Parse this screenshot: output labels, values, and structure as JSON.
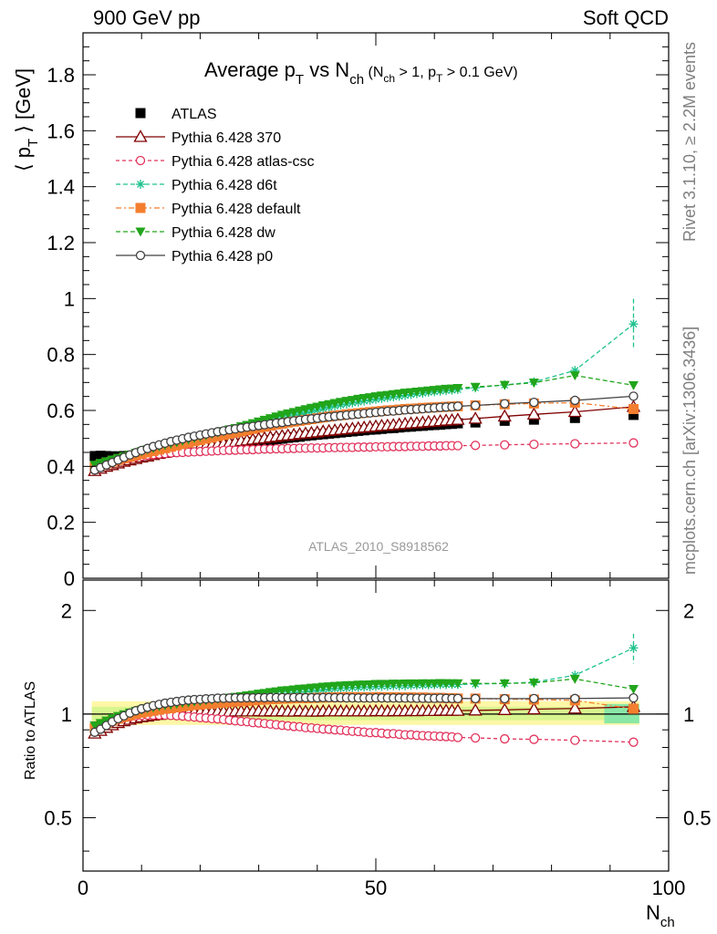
{
  "header": {
    "left": "900 GeV pp",
    "right": "Soft QCD"
  },
  "side_text": {
    "rivet": "Rivet 3.1.10, ≥ 2.2M events",
    "mcplots": "mcplots.cern.ch [arXiv:1306.3436]"
  },
  "analysis_id": "ATLAS_2010_S8918562",
  "title": {
    "main": "Average p",
    "main_sub": "T",
    "vs": " vs N",
    "vs_sub": "ch",
    "cond1": " (N",
    "cond1_sub": "ch",
    "cond2": " > 1, p",
    "cond2_sub": "T",
    "cond3": " > 0.1 GeV)"
  },
  "ylabel": {
    "open": "⟨ p",
    "sub": "T",
    "close": " ⟩  [GeV]"
  },
  "ratio_ylabel": "Ratio to ATLAS",
  "xlabel": {
    "main": "N",
    "sub": "ch"
  },
  "chart_data": {
    "type": "line",
    "x": [
      2,
      3,
      4,
      5,
      6,
      7,
      8,
      9,
      10,
      11,
      12,
      13,
      14,
      15,
      16,
      17,
      18,
      19,
      20,
      21,
      22,
      23,
      24,
      25,
      26,
      27,
      28,
      29,
      30,
      31,
      32,
      33,
      34,
      35,
      36,
      37,
      38,
      39,
      40,
      41,
      42,
      43,
      44,
      45,
      46,
      47,
      48,
      49,
      50,
      51,
      52,
      53,
      54,
      55,
      56,
      57,
      58,
      59,
      60,
      61,
      62,
      63,
      64,
      67,
      72,
      77,
      84,
      94
    ],
    "xlim": [
      0,
      100
    ],
    "ylim": [
      0,
      1.95
    ],
    "ratio_ylim": [
      0.35,
      2.45
    ],
    "ratio_log": true,
    "xticks": [
      0,
      50,
      100
    ],
    "yticks": [
      0,
      0.2,
      0.4,
      0.6,
      0.8,
      1,
      1.2,
      1.4,
      1.6,
      1.8
    ],
    "ratio_ticks": [
      0.5,
      1,
      2
    ],
    "legend_position": "top-left",
    "series": [
      {
        "name": "ATLAS",
        "color": "#000000",
        "marker": "square-filled",
        "dash": "none",
        "values": [
          0.437,
          0.438,
          0.437,
          0.436,
          0.436,
          0.437,
          0.438,
          0.439,
          0.441,
          0.443,
          0.445,
          0.447,
          0.449,
          0.452,
          0.454,
          0.456,
          0.459,
          0.461,
          0.464,
          0.466,
          0.469,
          0.471,
          0.474,
          0.477,
          0.479,
          0.482,
          0.484,
          0.487,
          0.489,
          0.492,
          0.494,
          0.497,
          0.499,
          0.502,
          0.504,
          0.506,
          0.509,
          0.511,
          0.513,
          0.515,
          0.517,
          0.519,
          0.521,
          0.523,
          0.525,
          0.527,
          0.529,
          0.531,
          0.532,
          0.534,
          0.536,
          0.537,
          0.539,
          0.541,
          0.542,
          0.544,
          0.545,
          0.547,
          0.548,
          0.549,
          0.551,
          0.552,
          0.554,
          0.557,
          0.563,
          0.567,
          0.573,
          0.584
        ]
      },
      {
        "name": "Pythia 6.428 370",
        "color": "#800000",
        "marker": "triangle-open",
        "dash": "none",
        "values": [
          0.384,
          0.392,
          0.399,
          0.405,
          0.411,
          0.417,
          0.422,
          0.427,
          0.432,
          0.436,
          0.441,
          0.445,
          0.449,
          0.453,
          0.456,
          0.46,
          0.463,
          0.467,
          0.47,
          0.473,
          0.476,
          0.479,
          0.482,
          0.485,
          0.488,
          0.491,
          0.493,
          0.496,
          0.499,
          0.501,
          0.504,
          0.506,
          0.509,
          0.511,
          0.513,
          0.516,
          0.518,
          0.52,
          0.522,
          0.525,
          0.527,
          0.529,
          0.531,
          0.533,
          0.535,
          0.537,
          0.539,
          0.541,
          0.543,
          0.545,
          0.546,
          0.548,
          0.55,
          0.552,
          0.554,
          0.555,
          0.557,
          0.559,
          0.56,
          0.562,
          0.564,
          0.565,
          0.567,
          0.571,
          0.579,
          0.586,
          0.595,
          0.613
        ]
      },
      {
        "name": "Pythia 6.428 atlas-csc",
        "color": "#e2335c",
        "marker": "circle-open",
        "dash": "4,3",
        "values": [
          0.395,
          0.403,
          0.41,
          0.416,
          0.421,
          0.426,
          0.43,
          0.434,
          0.437,
          0.44,
          0.442,
          0.444,
          0.446,
          0.448,
          0.449,
          0.45,
          0.451,
          0.452,
          0.453,
          0.454,
          0.455,
          0.456,
          0.457,
          0.458,
          0.458,
          0.459,
          0.46,
          0.46,
          0.461,
          0.462,
          0.462,
          0.463,
          0.463,
          0.464,
          0.464,
          0.465,
          0.465,
          0.466,
          0.466,
          0.466,
          0.467,
          0.467,
          0.468,
          0.468,
          0.468,
          0.469,
          0.469,
          0.469,
          0.47,
          0.47,
          0.47,
          0.471,
          0.471,
          0.471,
          0.472,
          0.472,
          0.472,
          0.473,
          0.473,
          0.473,
          0.474,
          0.474,
          0.474,
          0.475,
          0.477,
          0.479,
          0.481,
          0.484
        ]
      },
      {
        "name": "Pythia 6.428 d6t",
        "color": "#1fc28e",
        "marker": "star",
        "dash": "5,3",
        "values": [
          0.404,
          0.411,
          0.417,
          0.423,
          0.428,
          0.433,
          0.439,
          0.444,
          0.449,
          0.455,
          0.46,
          0.466,
          0.471,
          0.476,
          0.481,
          0.486,
          0.491,
          0.496,
          0.501,
          0.506,
          0.511,
          0.516,
          0.521,
          0.526,
          0.531,
          0.536,
          0.541,
          0.546,
          0.551,
          0.556,
          0.561,
          0.566,
          0.571,
          0.576,
          0.581,
          0.586,
          0.591,
          0.596,
          0.601,
          0.606,
          0.611,
          0.616,
          0.62,
          0.623,
          0.627,
          0.63,
          0.634,
          0.637,
          0.64,
          0.643,
          0.646,
          0.649,
          0.651,
          0.654,
          0.657,
          0.66,
          0.662,
          0.665,
          0.667,
          0.669,
          0.671,
          0.673,
          0.675,
          0.681,
          0.691,
          0.702,
          0.743,
          0.909
        ]
      },
      {
        "name": "Pythia 6.428 default",
        "color": "#f47e2f",
        "marker": "square-filled",
        "dash": "6,3,2,3",
        "values": [
          0.398,
          0.405,
          0.411,
          0.417,
          0.423,
          0.429,
          0.434,
          0.44,
          0.445,
          0.45,
          0.455,
          0.46,
          0.465,
          0.47,
          0.475,
          0.48,
          0.485,
          0.49,
          0.494,
          0.499,
          0.503,
          0.508,
          0.512,
          0.517,
          0.521,
          0.525,
          0.529,
          0.534,
          0.538,
          0.542,
          0.546,
          0.55,
          0.553,
          0.557,
          0.56,
          0.563,
          0.566,
          0.569,
          0.572,
          0.575,
          0.578,
          0.581,
          0.583,
          0.586,
          0.588,
          0.59,
          0.592,
          0.594,
          0.596,
          0.598,
          0.6,
          0.601,
          0.603,
          0.605,
          0.606,
          0.607,
          0.609,
          0.61,
          0.611,
          0.612,
          0.613,
          0.614,
          0.615,
          0.618,
          0.622,
          0.625,
          0.628,
          0.605
        ]
      },
      {
        "name": "Pythia 6.428 dw",
        "color": "#21a51b",
        "marker": "triangle-down-filled",
        "dash": "5,3",
        "values": [
          0.405,
          0.412,
          0.418,
          0.424,
          0.43,
          0.436,
          0.442,
          0.448,
          0.454,
          0.46,
          0.465,
          0.471,
          0.476,
          0.481,
          0.486,
          0.491,
          0.496,
          0.501,
          0.506,
          0.511,
          0.516,
          0.521,
          0.526,
          0.532,
          0.537,
          0.543,
          0.548,
          0.554,
          0.56,
          0.566,
          0.572,
          0.578,
          0.584,
          0.589,
          0.594,
          0.599,
          0.604,
          0.609,
          0.613,
          0.618,
          0.622,
          0.626,
          0.63,
          0.634,
          0.637,
          0.641,
          0.644,
          0.647,
          0.65,
          0.653,
          0.655,
          0.658,
          0.66,
          0.663,
          0.665,
          0.667,
          0.669,
          0.671,
          0.673,
          0.675,
          0.677,
          0.678,
          0.68,
          0.684,
          0.691,
          0.699,
          0.725,
          0.69
        ]
      },
      {
        "name": "Pythia 6.428 p0",
        "color": "#404040",
        "marker": "circle-open",
        "dash": "none",
        "values": [
          0.387,
          0.396,
          0.405,
          0.414,
          0.423,
          0.432,
          0.441,
          0.449,
          0.457,
          0.464,
          0.471,
          0.477,
          0.483,
          0.489,
          0.494,
          0.499,
          0.504,
          0.508,
          0.512,
          0.516,
          0.52,
          0.524,
          0.527,
          0.531,
          0.534,
          0.537,
          0.54,
          0.543,
          0.546,
          0.549,
          0.552,
          0.555,
          0.557,
          0.56,
          0.563,
          0.565,
          0.568,
          0.57,
          0.572,
          0.575,
          0.577,
          0.579,
          0.581,
          0.583,
          0.585,
          0.587,
          0.589,
          0.591,
          0.593,
          0.595,
          0.597,
          0.598,
          0.6,
          0.602,
          0.603,
          0.605,
          0.606,
          0.608,
          0.609,
          0.611,
          0.612,
          0.613,
          0.615,
          0.618,
          0.624,
          0.629,
          0.636,
          0.651
        ]
      }
    ]
  }
}
